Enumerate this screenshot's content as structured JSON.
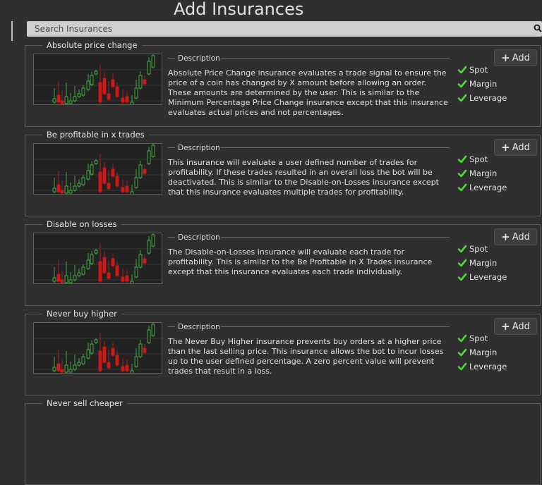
{
  "header": {
    "title": "Add Insurances"
  },
  "search": {
    "placeholder": "Search Insurances"
  },
  "description_label": "Description",
  "add_label": "Add",
  "cards": [
    {
      "name": "Absolute price change",
      "description": "Absolute Price Change insurance evaluates a trade signal to ensure the price of a coin has changed by X amount before allowing an order. These amounts are determined by the user. This is similar to the Minimum Percentage Price Change insurance except that this insurance evaluates actual prices and not percentages.",
      "markets": [
        "Spot",
        "Margin",
        "Leverage"
      ]
    },
    {
      "name": "Be profitable in x trades",
      "description": "This insurance will evaluate a user defined number of trades for profitability. If these trades resulted in an overall loss the bot will be deactivated. This is similar to the Disable-on-Losses insurance except that this insurance evaluates multiple trades for profitability.",
      "markets": [
        "Spot",
        "Margin",
        "Leverage"
      ]
    },
    {
      "name": "Disable on losses",
      "description": "The Disable-on-Losses insurance will evaluate each trade for profitability. This is similar to the Be Profitable in X Trades insurance except that this insurance evaluates each trade individually.",
      "markets": [
        "Spot",
        "Margin",
        "Leverage"
      ]
    },
    {
      "name": "Never buy higher",
      "description": "The Never Buy Higher insurance prevents buy orders at a higher price than the last selling price. This insurance allows the bot to incur losses up to the user defined percentage. A zero percent value will prevent trades that result in a loss.",
      "markets": [
        "Spot",
        "Margin",
        "Leverage"
      ]
    },
    {
      "name": "Never sell cheaper",
      "description": "",
      "markets": []
    }
  ],
  "colors": {
    "up": "#4cc84c",
    "down": "#d01818",
    "check": "#4ed83a"
  }
}
